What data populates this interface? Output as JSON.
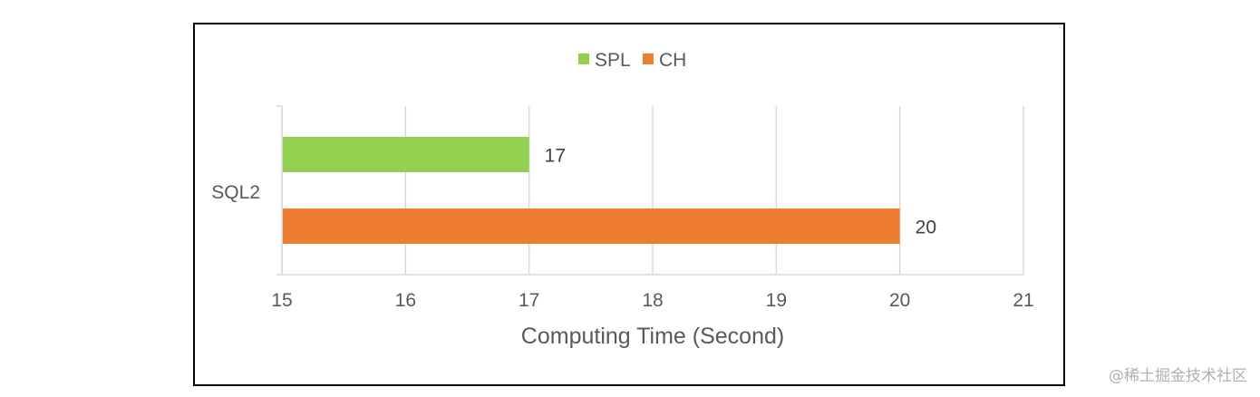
{
  "chart_data": {
    "type": "bar",
    "orientation": "horizontal",
    "title": "",
    "categories": [
      "SQL2"
    ],
    "series": [
      {
        "name": "SPL",
        "values": [
          17
        ],
        "color": "#92d050"
      },
      {
        "name": "CH",
        "values": [
          20
        ],
        "color": "#ed7d31"
      }
    ],
    "xlabel": "Computing Time (Second)",
    "ylabel": "",
    "xlim": [
      15,
      21
    ],
    "xticks": [
      15,
      16,
      17,
      18,
      19,
      20,
      21
    ],
    "grid": true,
    "legend_position": "top-center",
    "data_labels": true
  },
  "watermark": "@稀土掘金技术社区"
}
